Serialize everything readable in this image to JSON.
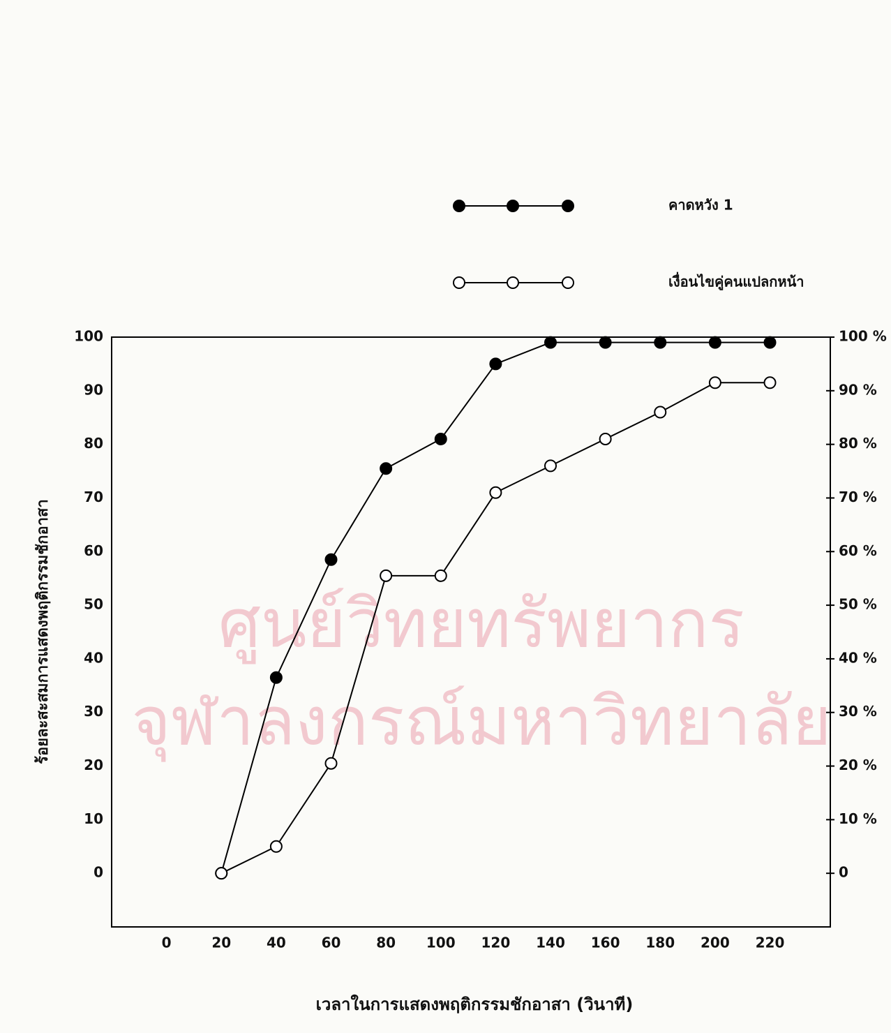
{
  "chart_data": {
    "type": "line",
    "xlabel": "เวลาในการแสดงพฤติกรรมชักอาสา (วินาที)",
    "ylabel": "ร้อยละสะสมการแสดงพฤติกรรมชักอาสา",
    "watermark": [
      "ศูนย์วิทยทรัพยากร",
      "จุฬาลงกรณ์มหาวิทยาลัย"
    ],
    "x": [
      20,
      40,
      60,
      80,
      100,
      120,
      140,
      160,
      180,
      200,
      220
    ],
    "series": [
      {
        "name": "คาดหวัง 1",
        "color": "#000000",
        "marker": "filled",
        "values": [
          0,
          36.5,
          58.5,
          75.5,
          81,
          95,
          99,
          99,
          99,
          99,
          99
        ]
      },
      {
        "name": "เงื่อนไขคู่คนแปลกหน้า",
        "color": "#000000",
        "marker": "open",
        "values": [
          0,
          5,
          20.5,
          55.5,
          55.5,
          71,
          76,
          81,
          86,
          91.5,
          91.5
        ]
      }
    ],
    "xlim": [
      -20,
      242
    ],
    "xticks": [
      0,
      20,
      40,
      60,
      80,
      100,
      120,
      140,
      160,
      180,
      200,
      220
    ],
    "ylim": [
      -10,
      100
    ],
    "yticks": [
      0,
      10,
      20,
      30,
      40,
      50,
      60,
      70,
      80,
      90,
      100
    ],
    "y2lim": [
      -10,
      100
    ],
    "y2ticks": [
      {
        "value": 0,
        "label": "0"
      },
      {
        "value": 10,
        "label": "10 %"
      },
      {
        "value": 20,
        "label": "20 %"
      },
      {
        "value": 30,
        "label": "30 %"
      },
      {
        "value": 40,
        "label": "40 %"
      },
      {
        "value": 50,
        "label": "50 %"
      },
      {
        "value": 60,
        "label": "60 %"
      },
      {
        "value": 70,
        "label": "70 %"
      },
      {
        "value": 80,
        "label": "80 %"
      },
      {
        "value": 90,
        "label": "90 %"
      },
      {
        "value": 100,
        "label": "100 %"
      }
    ],
    "grid": false,
    "legend": "upper right"
  }
}
